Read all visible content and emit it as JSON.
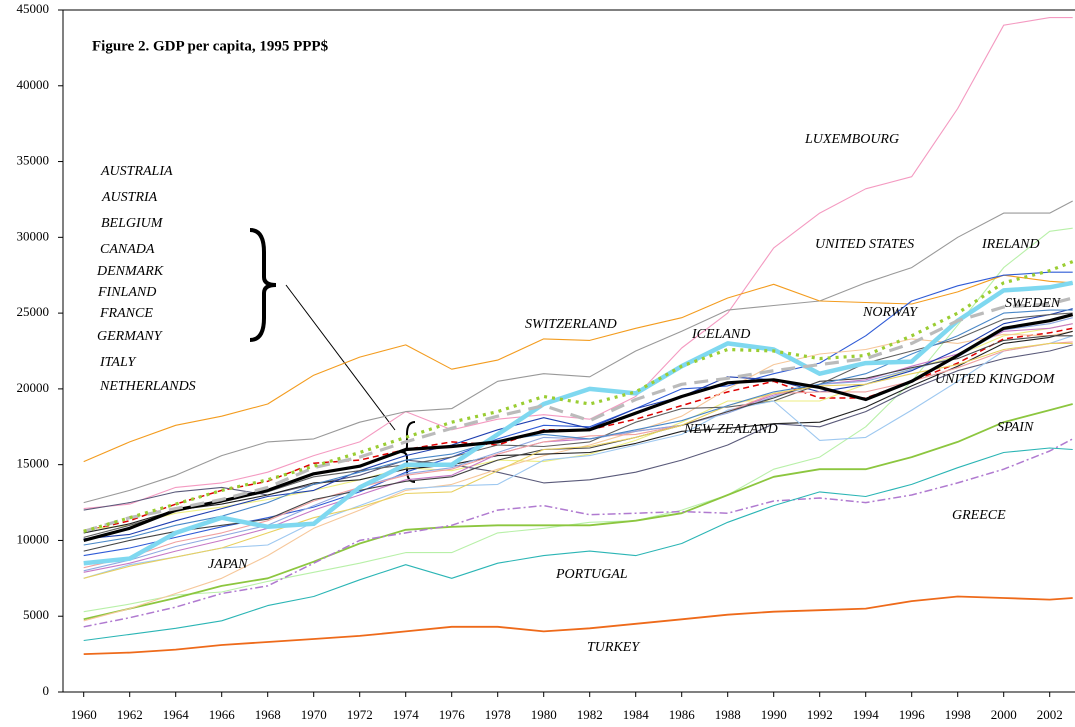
{
  "chart_data": {
    "type": "line",
    "title": "Figure 2. GDP per capita, 1995 PPP$",
    "x": [
      1960,
      1962,
      1964,
      1966,
      1968,
      1970,
      1972,
      1974,
      1976,
      1978,
      1980,
      1982,
      1984,
      1986,
      1988,
      1990,
      1992,
      1994,
      1996,
      1998,
      2000,
      2002,
      2003
    ],
    "xlim": [
      1959.1,
      2003.1
    ],
    "xticks": [
      1960,
      1962,
      1964,
      1966,
      1968,
      1970,
      1972,
      1974,
      1976,
      1978,
      1980,
      1982,
      1984,
      1986,
      1988,
      1990,
      1992,
      1994,
      1996,
      1998,
      2000,
      2002
    ],
    "ylim": [
      0,
      45000
    ],
    "yticks": [
      0,
      5000,
      10000,
      15000,
      20000,
      25000,
      30000,
      35000,
      40000,
      45000
    ],
    "grid": false,
    "series": [
      {
        "name": "LUXEMBOURG",
        "color": "#f49ac1",
        "values": [
          12100,
          12400,
          13500,
          13800,
          14500,
          15600,
          16500,
          18500,
          17300,
          18000,
          18300,
          18000,
          19500,
          22700,
          25000,
          29300,
          31600,
          33200,
          34000,
          38500,
          44000,
          44500,
          44500
        ]
      },
      {
        "name": "UNITED STATES",
        "color": "#999999",
        "values": [
          12500,
          13300,
          14300,
          15600,
          16500,
          16700,
          17800,
          18500,
          18700,
          20500,
          21000,
          20800,
          22500,
          23800,
          25200,
          25500,
          25800,
          27000,
          28000,
          30000,
          31600,
          31600,
          32400
        ]
      },
      {
        "name": "IRELAND",
        "color": "#b8f0a8",
        "values": [
          5300,
          5800,
          6400,
          6600,
          7300,
          7900,
          8500,
          9200,
          9200,
          10500,
          10800,
          11200,
          11300,
          12000,
          13000,
          14700,
          15500,
          17500,
          20500,
          24200,
          28000,
          30400,
          30600
        ]
      },
      {
        "name": "SWITZERLAND",
        "color": "#f39c1f",
        "values": [
          15200,
          16500,
          17600,
          18200,
          19000,
          20900,
          22100,
          22900,
          21300,
          21900,
          23300,
          23200,
          24000,
          24700,
          26000,
          26900,
          25800,
          25700,
          25600,
          26400,
          27500,
          27100,
          27000
        ]
      },
      {
        "name": "NORWAY",
        "color": "#2f5bd6",
        "values": [
          9000,
          9500,
          10200,
          10900,
          11500,
          12200,
          13200,
          14500,
          15500,
          16700,
          17600,
          17500,
          18700,
          20000,
          20200,
          21000,
          21700,
          23500,
          25800,
          26800,
          27500,
          27700,
          27700
        ]
      },
      {
        "name": "ICELAND",
        "color": "#7fd8f0",
        "values": [
          8500,
          8800,
          10500,
          11500,
          10900,
          11100,
          13500,
          15000,
          15000,
          17000,
          19000,
          20000,
          19700,
          21500,
          23000,
          22600,
          21000,
          21700,
          21800,
          24500,
          26500,
          26700,
          27000
        ]
      },
      {
        "name": "SWEDEN",
        "color": "#dd0000",
        "values": [
          10600,
          11300,
          12400,
          13300,
          13900,
          15100,
          15300,
          16000,
          16500,
          16300,
          17300,
          17300,
          18000,
          18900,
          19800,
          20500,
          19400,
          19400,
          20500,
          21700,
          23300,
          23700,
          24000
        ]
      },
      {
        "name": "UNITED KINGDOM",
        "color": "#eeee80",
        "values": [
          10700,
          11000,
          11800,
          12200,
          12700,
          13300,
          14000,
          14800,
          14600,
          15300,
          15200,
          15700,
          16600,
          17800,
          19200,
          19200,
          19200,
          20300,
          21300,
          22200,
          23500,
          24000,
          24300
        ]
      },
      {
        "name": "SPAIN",
        "color": "#8cc63f",
        "values": [
          4800,
          5500,
          6200,
          7000,
          7500,
          8600,
          9800,
          10700,
          10900,
          11000,
          11000,
          11000,
          11300,
          11800,
          13000,
          14200,
          14700,
          14700,
          15500,
          16500,
          17800,
          18600,
          19000
        ]
      },
      {
        "name": "NEW ZEALAND",
        "color": "#5a5a7a",
        "values": [
          12000,
          12500,
          13200,
          13500,
          13000,
          13700,
          14300,
          15300,
          15000,
          14500,
          13800,
          14000,
          14500,
          15300,
          16300,
          17700,
          17500,
          18500,
          20000,
          21200,
          22000,
          22500,
          22900
        ]
      },
      {
        "name": "GREECE",
        "color": "#b07ad0",
        "values": [
          4300,
          4900,
          5600,
          6500,
          7000,
          8500,
          10000,
          10500,
          11000,
          12000,
          12300,
          11700,
          11800,
          11900,
          11800,
          12600,
          12800,
          12500,
          13000,
          13800,
          14700,
          15900,
          16700
        ]
      },
      {
        "name": "PORTUGAL",
        "color": "#2bb5b5",
        "values": [
          3400,
          3800,
          4200,
          4700,
          5700,
          6300,
          7400,
          8400,
          7500,
          8500,
          9000,
          9300,
          9000,
          9800,
          11200,
          12300,
          13200,
          12900,
          13700,
          14800,
          15800,
          16100,
          16000
        ]
      },
      {
        "name": "JAPAN",
        "color": "#f6c79a",
        "values": [
          4700,
          5500,
          6500,
          7500,
          9000,
          10800,
          12000,
          13300,
          13700,
          14700,
          15600,
          16300,
          17200,
          18200,
          20000,
          21600,
          22300,
          22600,
          23300,
          23000,
          23600,
          23500,
          23800
        ]
      },
      {
        "name": "TURKEY",
        "color": "#ee6a1a",
        "values": [
          2500,
          2600,
          2800,
          3100,
          3300,
          3500,
          3700,
          4000,
          4300,
          4300,
          4000,
          4200,
          4500,
          4800,
          5100,
          5300,
          5400,
          5500,
          6000,
          6300,
          6200,
          6100,
          6200
        ]
      },
      {
        "name": "AUSTRALIA",
        "color": "#222222",
        "values": [
          10500,
          11100,
          12000,
          12400,
          13000,
          13800,
          14000,
          14700,
          15000,
          15600,
          15700,
          15800,
          16400,
          17200,
          17400,
          17700,
          17800,
          18800,
          20200,
          21500,
          23000,
          23400,
          23800
        ]
      },
      {
        "name": "AUSTRIA",
        "color": "#c678c6",
        "values": [
          7900,
          8500,
          9300,
          10000,
          10800,
          12000,
          13000,
          14000,
          14300,
          15700,
          16500,
          16700,
          17200,
          17600,
          18500,
          19600,
          20300,
          20600,
          21500,
          22300,
          23800,
          24000,
          24300
        ]
      },
      {
        "name": "BELGIUM",
        "color": "#8fa8e0",
        "values": [
          8000,
          8700,
          9600,
          10300,
          11000,
          12300,
          13500,
          14400,
          14800,
          15800,
          16800,
          16700,
          17200,
          17600,
          18400,
          19500,
          20300,
          20500,
          21300,
          22100,
          23900,
          24300,
          24700
        ]
      },
      {
        "name": "CANADA",
        "color": "#1f3fb0",
        "values": [
          10100,
          10400,
          11300,
          12100,
          12900,
          13300,
          14600,
          15600,
          16300,
          17300,
          18100,
          17400,
          18700,
          19500,
          20800,
          20600,
          19800,
          20300,
          21200,
          22600,
          24300,
          24900,
          25300
        ]
      },
      {
        "name": "DENMARK",
        "color": "#606060",
        "values": [
          10200,
          11000,
          11900,
          12600,
          13200,
          14200,
          14600,
          15000,
          15500,
          16300,
          16200,
          16500,
          17800,
          18700,
          18800,
          19200,
          20300,
          21700,
          22500,
          23300,
          24600,
          24900,
          25000
        ]
      },
      {
        "name": "FINLAND",
        "color": "#9ec8f0",
        "values": [
          7500,
          8400,
          8900,
          9500,
          9700,
          11200,
          12300,
          13400,
          13600,
          13700,
          15300,
          15600,
          16300,
          17000,
          18600,
          19200,
          16600,
          16800,
          18600,
          20500,
          22500,
          23000,
          23500
        ]
      },
      {
        "name": "FRANCE",
        "color": "#f0a0a0",
        "values": [
          8200,
          8900,
          9900,
          10500,
          11300,
          12600,
          13500,
          14300,
          14700,
          15700,
          16500,
          16900,
          17000,
          17600,
          18500,
          19700,
          19800,
          19800,
          20500,
          21400,
          22500,
          23000,
          23100
        ]
      },
      {
        "name": "GERMANY",
        "color": "#444444",
        "values": [
          9300,
          10000,
          10600,
          11000,
          11400,
          12700,
          13300,
          13900,
          14200,
          15300,
          16000,
          16100,
          16800,
          17600,
          18500,
          19400,
          20500,
          20700,
          21400,
          22000,
          23200,
          23500,
          23500
        ]
      },
      {
        "name": "ITALY",
        "color": "#e8d060",
        "values": [
          7500,
          8300,
          8900,
          9500,
          10500,
          11500,
          12200,
          13100,
          13200,
          14600,
          16000,
          16200,
          16800,
          17600,
          18900,
          19700,
          20200,
          20300,
          21000,
          21600,
          22600,
          23000,
          23000
        ]
      },
      {
        "name": "NETHERLANDS",
        "color": "#4a88c8",
        "values": [
          9700,
          10200,
          11000,
          11600,
          12500,
          13700,
          14500,
          15300,
          15700,
          16600,
          17000,
          16700,
          17300,
          17900,
          18900,
          19800,
          20300,
          21000,
          22300,
          23500,
          25000,
          25200,
          25200
        ]
      },
      {
        "color": "#000000",
        "values": [
          10000,
          10800,
          12000,
          12600,
          13300,
          14400,
          14900,
          16000,
          16200,
          16500,
          17200,
          17300,
          18400,
          19500,
          20400,
          20600,
          20100,
          19300,
          20500,
          22200,
          24000,
          24500,
          24900
        ]
      },
      {
        "color": "#bbbbbb",
        "values": [
          10600,
          11500,
          12100,
          12700,
          13500,
          14800,
          15500,
          16500,
          17400,
          18200,
          18900,
          17900,
          19300,
          20300,
          20700,
          21200,
          21600,
          22000,
          23000,
          24500,
          25400,
          25600,
          26000
        ]
      },
      {
        "color": "#9acd32",
        "values": [
          10600,
          11500,
          12400,
          13300,
          14000,
          14900,
          15800,
          16800,
          17800,
          18500,
          19500,
          19000,
          19800,
          21500,
          22600,
          22500,
          22000,
          22200,
          23500,
          25000,
          27000,
          27800,
          28400
        ]
      }
    ]
  }
}
